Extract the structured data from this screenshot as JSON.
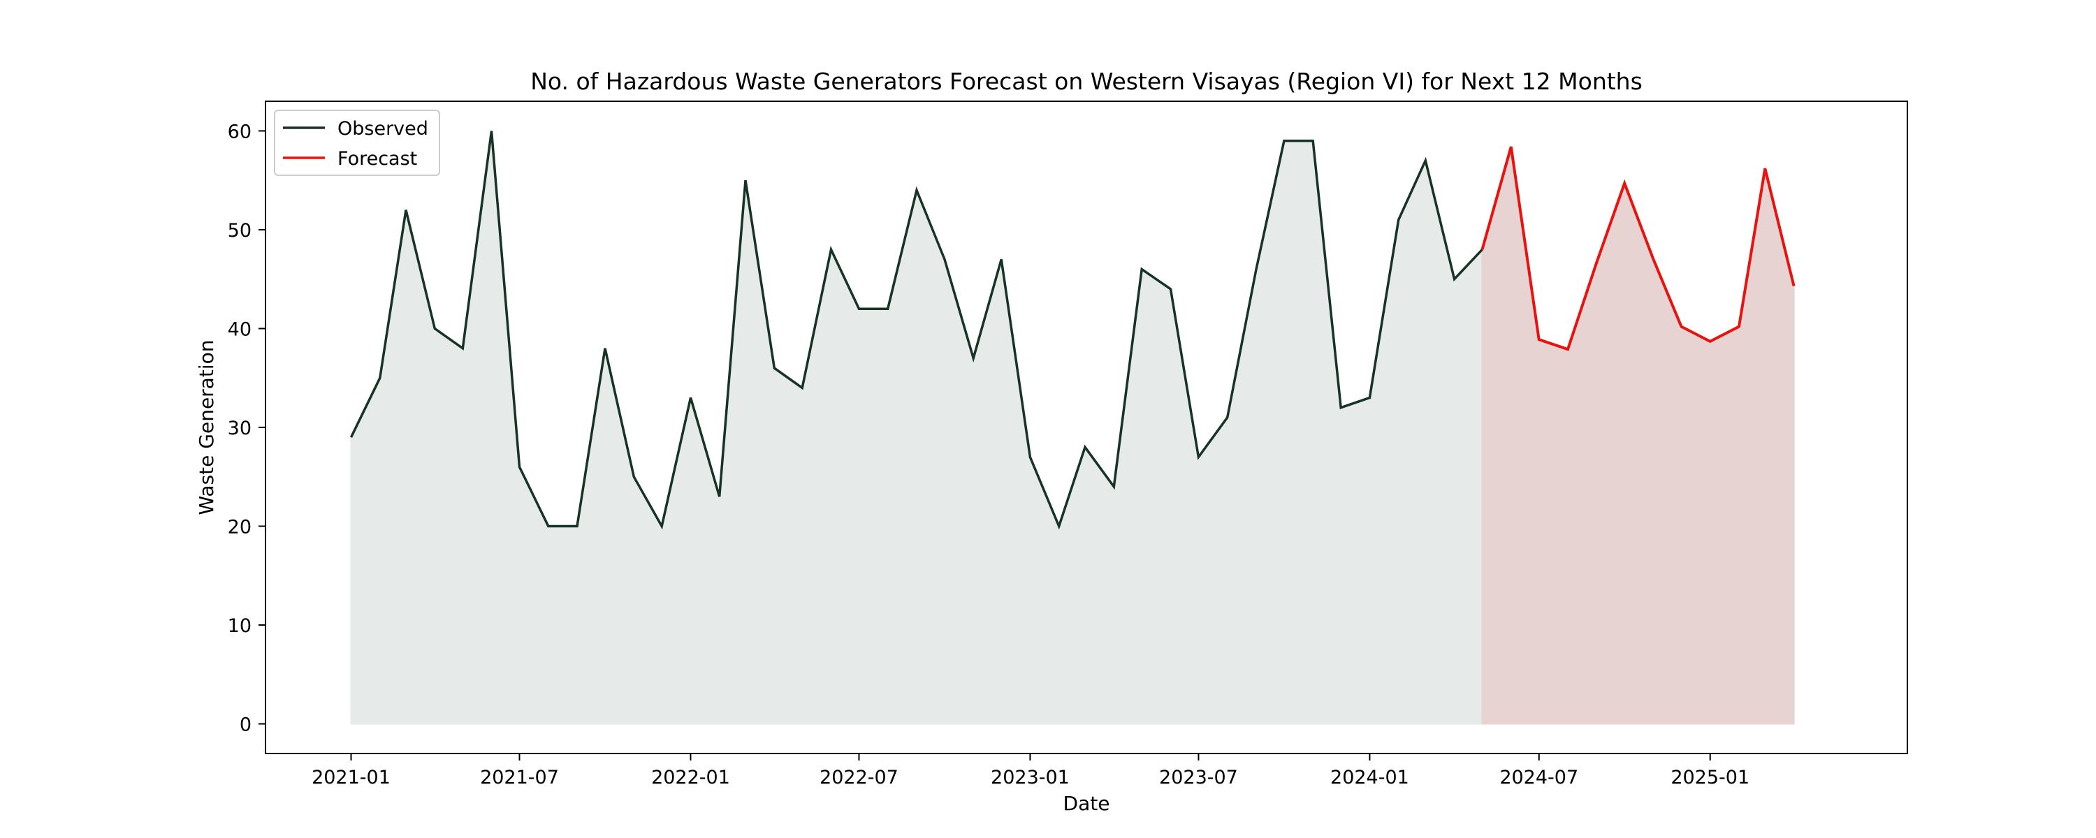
{
  "chart_data": {
    "type": "line",
    "title": "No. of Hazardous Waste Generators Forecast on Western Visayas (Region VI) for Next 12 Months",
    "xlabel": "Date",
    "ylabel": "Waste Generation",
    "ylim": [
      -3,
      63
    ],
    "xlim": [
      "2020-10-01",
      "2025-08-01"
    ],
    "yticks": [
      0,
      10,
      20,
      30,
      40,
      50,
      60
    ],
    "xticks": [
      "2021-01",
      "2021-07",
      "2022-01",
      "2022-07",
      "2023-01",
      "2023-07",
      "2024-01",
      "2024-07",
      "2025-01"
    ],
    "grid": false,
    "legend": "upper-left",
    "series": [
      {
        "name": "Observed",
        "color": "#173326",
        "fill": "#e6ebea",
        "x": [
          "2021-01",
          "2021-02",
          "2021-03",
          "2021-04",
          "2021-05",
          "2021-06",
          "2021-07",
          "2021-08",
          "2021-09",
          "2021-10",
          "2021-11",
          "2021-12",
          "2022-01",
          "2022-02",
          "2022-03",
          "2022-04",
          "2022-05",
          "2022-06",
          "2022-07",
          "2022-08",
          "2022-09",
          "2022-10",
          "2022-11",
          "2022-12",
          "2023-01",
          "2023-02",
          "2023-03",
          "2023-04",
          "2023-05",
          "2023-06",
          "2023-07",
          "2023-08",
          "2023-09",
          "2023-10",
          "2023-11",
          "2023-12",
          "2024-01",
          "2024-02",
          "2024-03",
          "2024-04",
          "2024-05"
        ],
        "values": [
          29,
          35,
          52,
          40,
          38,
          60,
          26,
          20,
          20,
          38,
          25,
          20,
          33,
          23,
          55,
          36,
          34,
          48,
          42,
          42,
          54,
          47,
          37,
          47,
          27,
          20,
          28,
          24,
          46,
          44,
          27,
          31,
          46,
          59,
          59,
          32,
          33,
          51,
          57,
          45,
          48
        ]
      },
      {
        "name": "Forecast",
        "color": "#e8130f",
        "fill": "#e8d3d3",
        "x": [
          "2024-05",
          "2024-06",
          "2024-07",
          "2024-08",
          "2024-09",
          "2024-10",
          "2024-11",
          "2024-12",
          "2025-01",
          "2025-02",
          "2025-03",
          "2025-04"
        ],
        "values": [
          48,
          58.4,
          38.9,
          37.9,
          46.7,
          54.7,
          47,
          40.2,
          38.7,
          40.2,
          56.2,
          44.3
        ]
      }
    ]
  }
}
